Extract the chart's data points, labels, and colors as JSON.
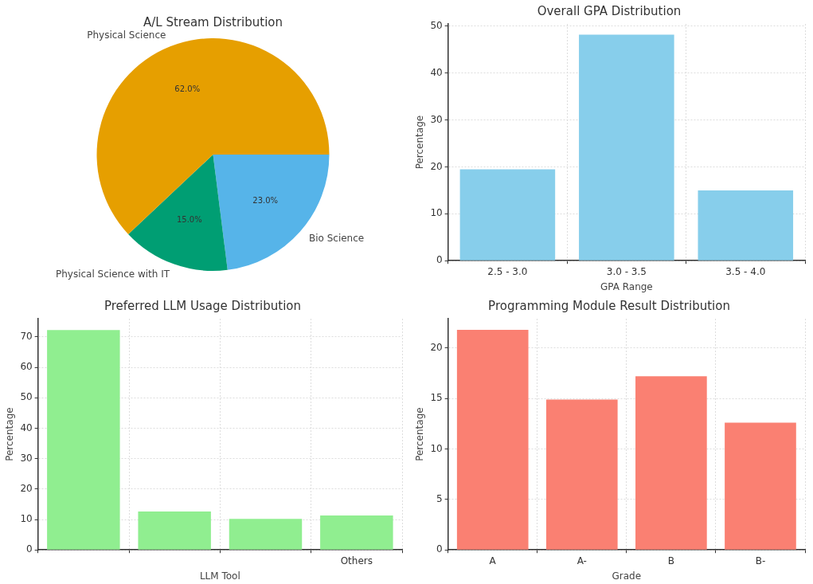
{
  "chart_data": [
    {
      "type": "pie",
      "title": "A/L Stream Distribution",
      "categories": [
        "Bio Science",
        "Physical Science with IT",
        "Physical Science"
      ],
      "values": [
        23,
        15,
        62
      ],
      "colors": [
        "#56b4e9",
        "#009e73",
        "#e69f00"
      ],
      "value_labels": [
        "23.0%",
        "15.0%",
        "62.0%"
      ]
    },
    {
      "type": "bar",
      "title": "Overall GPA Distribution",
      "categories": [
        "2.5 - 3.0",
        "3.0 - 3.5",
        "3.5 - 4.0"
      ],
      "values": [
        19.5,
        48.2,
        15.0
      ],
      "color": "#87ceeb",
      "xlabel": "GPA Range",
      "ylabel": "Percentage",
      "ylim": [
        0,
        50.5
      ],
      "yticks": [
        0,
        10,
        20,
        30,
        40,
        50
      ],
      "grid": true
    },
    {
      "type": "bar",
      "title": "Preferred LLM Usage Distribution",
      "categories": [
        null,
        null,
        null,
        "Others"
      ],
      "values": [
        72.3,
        12.6,
        10.2,
        11.3
      ],
      "color": "#90ee90",
      "xlabel": "LLM Tool",
      "ylabel": "Percentage",
      "ylim": [
        0,
        76
      ],
      "yticks": [
        0,
        10,
        20,
        30,
        40,
        50,
        60,
        70
      ],
      "grid": true
    },
    {
      "type": "bar",
      "title": "Programming Module Result Distribution",
      "categories": [
        "A",
        "A-",
        "B",
        "B-"
      ],
      "values": [
        21.8,
        14.9,
        17.2,
        12.6
      ],
      "color": "#fa8072",
      "xlabel": "Grade",
      "ylabel": "Percentage",
      "ylim": [
        0,
        22.9
      ],
      "yticks": [
        0,
        5,
        10,
        15,
        20
      ],
      "grid": true
    }
  ]
}
